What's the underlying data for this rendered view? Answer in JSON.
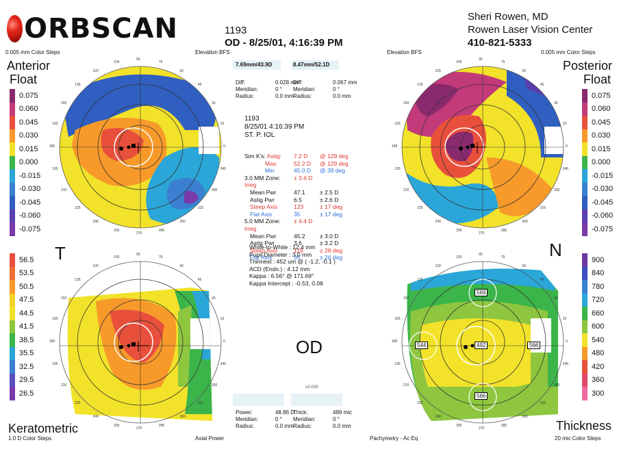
{
  "header": {
    "logo_text": "ORBSCAN",
    "exam_id": "1193",
    "exam_line": "OD - 8/25/01, 4:16:39 PM",
    "doctor": "Sheri Rowen, MD",
    "center": "Rowen Laser Vision Center",
    "phone": "410-821-5333"
  },
  "top_labels": {
    "left_steps": "0.005 mm Color Steps",
    "left_map": "Elevation BFS",
    "right_map": "Elevation BFS",
    "right_steps": "0.005 mm Color Steps",
    "anterior": "Anterior",
    "anterior_float": "Float",
    "posterior": "Posterior",
    "posterior_float": "Float"
  },
  "bottom_labels": {
    "keratometric": "Keratometric",
    "left_steps": "1.0 D Color Steps",
    "axial_power": "Axial Power",
    "pachymetry": "Pachymetry - Ac Eq",
    "thickness": "Thickness",
    "right_steps": "20 mic Color Steps"
  },
  "orientation": {
    "temporal": "T",
    "nasal": "N",
    "eye": "OD"
  },
  "elevation_scale": {
    "values": [
      "0.075",
      "0.060",
      "0.045",
      "0.030",
      "0.015",
      "0.000",
      "-0.015",
      "-0.030",
      "-0.045",
      "-0.060",
      "-0.075"
    ],
    "colors": [
      "#8a2a6e",
      "#c33a7a",
      "#e9503c",
      "#f79a2a",
      "#f2e22a",
      "#3bb54a",
      "#2aa6d8",
      "#3a7fd0",
      "#2f5fc0",
      "#5a3fb0",
      "#7a3aa8"
    ]
  },
  "posterior_scale": {
    "values": [
      "0.075",
      "0.060",
      "0.045",
      "0.030",
      "0.015",
      "0.000",
      "-0.015",
      "-0.030",
      "-0.045",
      "-0.060",
      "-0.075"
    ]
  },
  "power_scale": {
    "values": [
      "56.5",
      "53.5",
      "50.5",
      "47.5",
      "44.5",
      "41.5",
      "38.5",
      "35.5",
      "32.5",
      "29.5",
      "26.5"
    ],
    "colors": [
      "#e9503c",
      "#ef6e34",
      "#f79a2a",
      "#f2d22a",
      "#f2e22a",
      "#8ec63f",
      "#3bb54a",
      "#2aa6d8",
      "#3a7fd0",
      "#5a4fc0",
      "#7a3aa8"
    ]
  },
  "thickness_scale": {
    "values": [
      "900",
      "840",
      "780",
      "720",
      "660",
      "600",
      "540",
      "480",
      "420",
      "360",
      "300"
    ],
    "colors": [
      "#6a3aa0",
      "#3a4fc0",
      "#3a7fd0",
      "#2aa6d8",
      "#3bb54a",
      "#8ec63f",
      "#f2e22a",
      "#f79a2a",
      "#e9503c",
      "#e04a6a",
      "#f06aa0"
    ]
  },
  "top_center": {
    "left_header": "7.69mm/43.9D",
    "right_header": "8.47mm/52.1D",
    "left_rows": [
      [
        "Diff:",
        "0.028 mm"
      ],
      [
        "Meridian:",
        "0 °"
      ],
      [
        "Radius:",
        "0.0 mm"
      ]
    ],
    "right_rows": [
      [
        "Diff:",
        "0.067 mm"
      ],
      [
        "Meridian:",
        "0 °"
      ],
      [
        "Radius:",
        "0.0 mm"
      ]
    ]
  },
  "patient": {
    "id": "1193",
    "datetime": "8/25/01 4:16:39 PM",
    "name": "ST. P. IOL"
  },
  "stats": [
    [
      "Sim K's:",
      "Astig:",
      "7.2 D",
      "@ 129 deg"
    ],
    [
      "",
      "Max:",
      "52.2 D",
      "@ 129 deg"
    ],
    [
      "",
      "Min",
      "45.0 D",
      "@ 39 deg"
    ],
    [
      "3.0 MM Zone:",
      "Irreg",
      "± 3.6 D",
      ""
    ],
    [
      "Mean Pwr",
      "",
      "47.1",
      "± 2.5 D"
    ],
    [
      "Astig Pwr",
      "",
      "6.5",
      "± 2.6 D"
    ],
    [
      "Steep Axis",
      "",
      "123",
      "± 17 deg"
    ],
    [
      "Flat Axis",
      "",
      "35",
      "± 17 deg"
    ],
    [
      "5.0 MM Zone:",
      "Irreg",
      "± 4.4 D",
      ""
    ],
    [
      "Mean Pwr",
      "",
      "45.2",
      "± 3.0 D"
    ],
    [
      "Astig Pwr",
      "",
      "3.6",
      "± 3.2 D"
    ],
    [
      "Steep Axis",
      "",
      "119",
      "± 28 deg"
    ],
    [
      "Flat Axis",
      "",
      "35",
      "± 26 deg"
    ]
  ],
  "measurements": [
    "White-to-White : 12.4 mm",
    "Pupil Diameter : 3.0 mm",
    "Thinnest : 452 um @ ( -1.2, -0.1 )",
    "ACD (Endo.) : 4.12 mm",
    "Kappa : 6.56° @ 171.69°",
    "Kappa Intercept : -0.53, 0.08"
  ],
  "version": "v3.00D",
  "bottom_center": {
    "left_rows": [
      [
        "Power:",
        "48.86 D"
      ],
      [
        "Meridian:",
        "0 °"
      ],
      [
        "Radius:",
        "0.0 mm"
      ]
    ],
    "right_rows": [
      [
        "Thick:",
        "489 mic"
      ],
      [
        "Meridian:",
        "0 °"
      ],
      [
        "Radius:",
        "0.0 mm"
      ]
    ]
  },
  "pachy_labels": {
    "top": "569",
    "left": "544",
    "center": "492",
    "right": "566",
    "bottom": "566"
  },
  "angle_labels": {
    "a90": "90",
    "a105": "105",
    "a120": "120",
    "a135": "135",
    "a150": "150",
    "a165": "165",
    "a180": "180",
    "a195": "195",
    "a210": "210",
    "a225": "225",
    "a240": "240",
    "a255": "255",
    "a270": "270",
    "a285": "285",
    "a300": "300",
    "a315": "315",
    "a330": "330",
    "a345": "345",
    "a0": "0",
    "a15": "15",
    "a30": "30",
    "a45": "45",
    "a60": "60",
    "a75": "75"
  }
}
